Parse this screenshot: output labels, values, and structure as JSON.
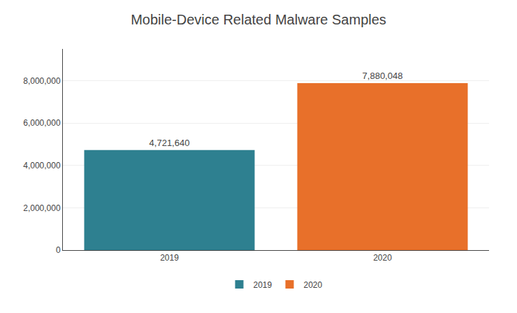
{
  "chart_data": {
    "type": "bar",
    "title": "Mobile-Device Related Malware Samples",
    "categories": [
      "2019",
      "2020"
    ],
    "series": [
      {
        "name": "2019",
        "color": "#2e8090",
        "values": [
          4721640,
          null
        ],
        "value_labels": [
          "4,721,640",
          null
        ]
      },
      {
        "name": "2020",
        "color": "#e8702a",
        "values": [
          null,
          7880048
        ],
        "value_labels": [
          null,
          "7,880,048"
        ]
      }
    ],
    "ylim": [
      0,
      9500000
    ],
    "yticks": [
      0,
      {
        "value": 2000000,
        "label": "2,000,000"
      },
      {
        "value": 4000000,
        "label": "4,000,000"
      },
      {
        "value": 6000000,
        "label": "6,000,000"
      },
      {
        "value": 8000000,
        "label": "8,000,000"
      }
    ],
    "grid": true,
    "legend": "bottom",
    "data_labels": true
  }
}
